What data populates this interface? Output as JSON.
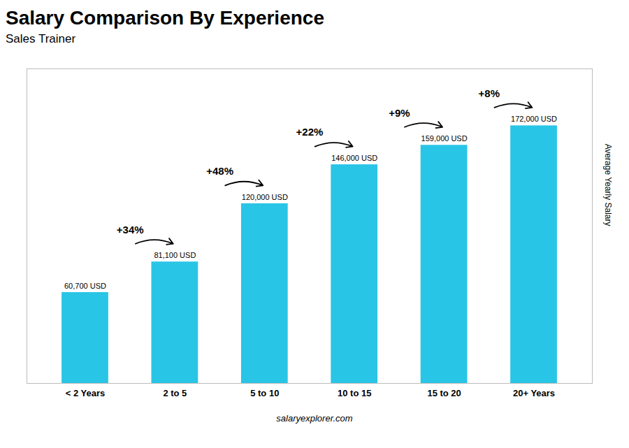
{
  "chart_data": {
    "type": "bar",
    "title": "Salary Comparison By Experience",
    "subtitle": "Sales Trainer",
    "categories": [
      "< 2 Years",
      "2 to 5",
      "5 to 10",
      "10 to 15",
      "15 to 20",
      "20+ Years"
    ],
    "values": [
      60700,
      81100,
      120000,
      146000,
      159000,
      172000
    ],
    "value_labels": [
      "60,700 USD",
      "81,100 USD",
      "120,000 USD",
      "146,000 USD",
      "159,000 USD",
      "172,000 USD"
    ],
    "data_labels": true,
    "color": "#29c5e6",
    "ylabel": "Average Yearly Salary",
    "ylim": [
      0,
      210000
    ],
    "tick_labels": "x",
    "grid": false,
    "annotations": [
      "+34%",
      "+48%",
      "+22%",
      "+9%",
      "+8%"
    ],
    "caption": "salaryexplorer.com"
  }
}
